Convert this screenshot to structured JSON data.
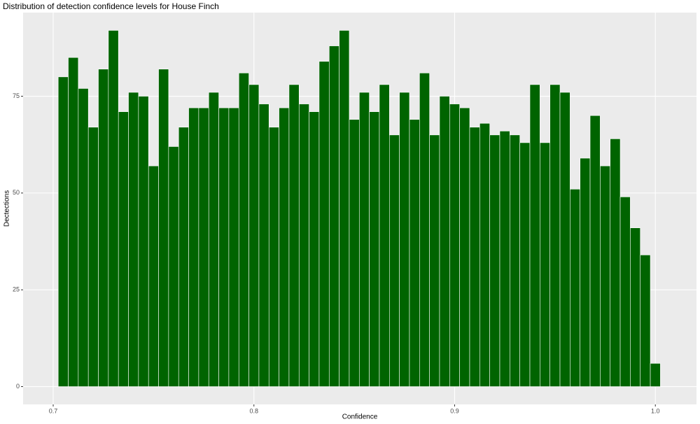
{
  "chart_data": {
    "type": "histogram",
    "title": "Distribution of detection confidence levels for House Finch",
    "x_label": "Confidence",
    "y_label": "Dectections",
    "bins": [
      0.7025,
      0.7075,
      0.7125,
      0.7175,
      0.7225,
      0.7275,
      0.7325,
      0.7375,
      0.7425,
      0.7475,
      0.7525,
      0.7575,
      0.7625,
      0.7675,
      0.7725,
      0.7775,
      0.7825,
      0.7875,
      0.7925,
      0.7975,
      0.8025,
      0.8075,
      0.8125,
      0.8175,
      0.8225,
      0.8275,
      0.8325,
      0.8375,
      0.8425,
      0.8475,
      0.8525,
      0.8575,
      0.8625,
      0.8675,
      0.8725,
      0.8775,
      0.8825,
      0.8875,
      0.8925,
      0.8975,
      0.9025,
      0.9075,
      0.9125,
      0.9175,
      0.9225,
      0.9275,
      0.9325,
      0.9375,
      0.9425,
      0.9475,
      0.9525,
      0.9575,
      0.9625,
      0.9675,
      0.9725,
      0.9775,
      0.9825,
      0.9875,
      0.9925,
      0.9975,
      1.0025
    ],
    "values": [
      80,
      85,
      77,
      67,
      82,
      92,
      71,
      76,
      75,
      57,
      82,
      62,
      67,
      72,
      72,
      76,
      72,
      72,
      81,
      78,
      73,
      67,
      72,
      78,
      73,
      71,
      84,
      88,
      92,
      69,
      76,
      71,
      78,
      65,
      76,
      69,
      81,
      65,
      75,
      73,
      72,
      67,
      68,
      65,
      66,
      65,
      63,
      78,
      63,
      78,
      76,
      51,
      59,
      70,
      57,
      64,
      49,
      41,
      34,
      6
    ],
    "color": "#006400",
    "xlim": [
      0.685,
      1.0205
    ],
    "ylim": [
      -4.6,
      96.6
    ],
    "xticks": [
      0.7,
      0.8,
      0.9,
      {
        "value": 1,
        "label": "1.0"
      }
    ],
    "yticks": [
      0,
      25,
      50,
      75
    ],
    "grid": true
  }
}
